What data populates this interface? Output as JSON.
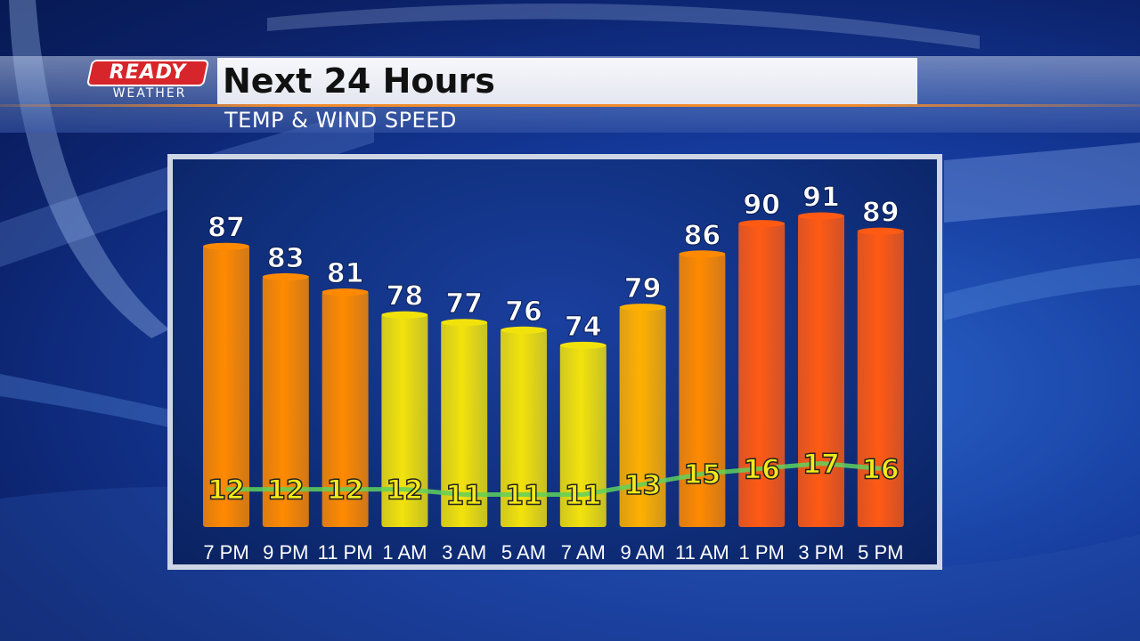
{
  "brand": {
    "logo_top": "READY",
    "logo_bottom": "WEATHER"
  },
  "header": {
    "title": "Next 24 Hours",
    "subtitle": "TEMP & WIND SPEED"
  },
  "colors": {
    "yellow": "#f2e20c",
    "orange_light": "#ffb000",
    "orange": "#ff8a00",
    "red_orange": "#ff5a14",
    "wind_line": "#5fd15a"
  },
  "chart_data": {
    "type": "bar",
    "categories": [
      "7 PM",
      "9 PM",
      "11 PM",
      "1 AM",
      "3 AM",
      "5 AM",
      "7 AM",
      "9 AM",
      "11 AM",
      "1 PM",
      "3 PM",
      "5 PM"
    ],
    "series": [
      {
        "values": [
          87,
          83,
          81,
          78,
          77,
          76,
          74,
          79,
          86,
          90,
          91,
          89
        ]
      },
      {
        "values": [
          12,
          12,
          12,
          12,
          11,
          11,
          11,
          13,
          15,
          16,
          17,
          16
        ]
      }
    ],
    "ylim": [
      50,
      92
    ],
    "xlabel": "",
    "ylabel": "",
    "title": "Next 24 Hours"
  }
}
